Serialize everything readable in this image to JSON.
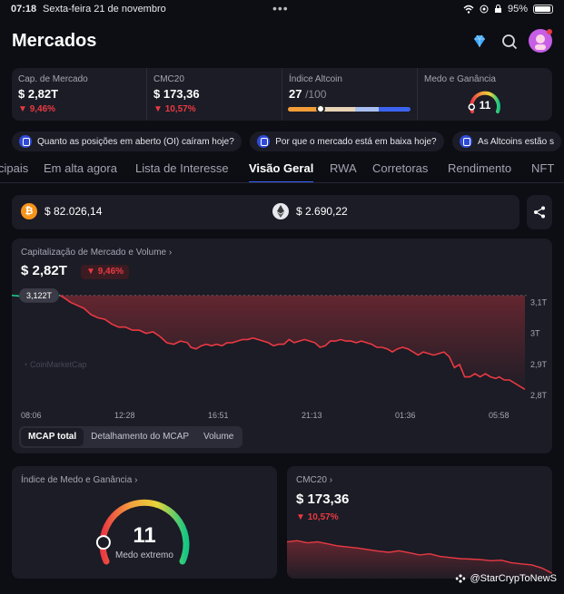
{
  "status_bar": {
    "time": "07:18",
    "date": "Sexta-feira 21 de novembro",
    "battery": "95%",
    "battery_level": 0.95
  },
  "header": {
    "title": "Mercados"
  },
  "stats": {
    "market_cap": {
      "label": "Cap. de Mercado",
      "value": "$ 2,82T",
      "change": "9,46%"
    },
    "cmc20": {
      "label": "CMC20",
      "value": "$ 173,36",
      "change": "10,57%"
    },
    "altcoin": {
      "label": "Índice Altcoin",
      "value": "27",
      "max": "/100",
      "level": 0.27
    },
    "fear_greed": {
      "label": "Medo e Ganância",
      "value": "11",
      "level": 0.11
    }
  },
  "ai_chips": [
    "Quanto as posições em aberto (OI) caíram hoje?",
    "Por que o mercado está em baixa hoje?",
    "As Altcoins estão s"
  ],
  "tabs": [
    "cipais",
    "Em alta agora",
    "Lista de Interesse",
    "Visão Geral",
    "RWA",
    "Corretoras",
    "Rendimento",
    "NFT"
  ],
  "active_tab": "Visão Geral",
  "prices": {
    "btc": "$ 82.026,14",
    "eth": "$ 2.690,22"
  },
  "market_chart": {
    "title": "Capitalização de Mercado e Volume",
    "value": "$ 2,82T",
    "change": "9,46%",
    "start_marker": "3,122T",
    "watermark": "CoinMarketCap",
    "segments": [
      "MCAP total",
      "Detalhamento do MCAP",
      "Volume"
    ],
    "active_segment": "MCAP total"
  },
  "chart_data": {
    "type": "line",
    "title": "Capitalização de Mercado e Volume",
    "x_tick_labels": [
      "08:06",
      "12:28",
      "16:51",
      "21:13",
      "01:36",
      "05:58"
    ],
    "y_tick_labels": [
      "3,1T",
      "3T",
      "2,9T",
      "2,8T"
    ],
    "ylim": [
      2.78,
      3.13
    ],
    "x": [
      0,
      4,
      8,
      12,
      16,
      20,
      24,
      28,
      31,
      34,
      38,
      42,
      46,
      50,
      54,
      58,
      62,
      66,
      70,
      74,
      78,
      82,
      86,
      90,
      94,
      98,
      102,
      104,
      107,
      110,
      113,
      116,
      119,
      122,
      125,
      128,
      131,
      134,
      137,
      140,
      143,
      146,
      149,
      152,
      155,
      158,
      161,
      164,
      167,
      170,
      173,
      176,
      179,
      182,
      185,
      188,
      191,
      194,
      197,
      200,
      203,
      206,
      209,
      212,
      215,
      218,
      221,
      224,
      227,
      230,
      233,
      236,
      239,
      242,
      245,
      248,
      251,
      254,
      257,
      260,
      263,
      266,
      269,
      272,
      275,
      278,
      281,
      283,
      286,
      289,
      292,
      295,
      298
    ],
    "series": [
      {
        "values": [
          3.122,
          3.12,
          3.121,
          3.118,
          3.122,
          3.12,
          3.121,
          3.122,
          3.112,
          3.1,
          3.09,
          3.08,
          3.06,
          3.05,
          3.045,
          3.03,
          3.02,
          3.02,
          3.01,
          3.01,
          3.0,
          3.005,
          2.99,
          2.97,
          2.965,
          2.975,
          2.97,
          2.955,
          2.95,
          2.96,
          2.965,
          2.96,
          2.965,
          2.96,
          2.97,
          2.97,
          2.975,
          2.98,
          2.98,
          2.985,
          2.98,
          2.975,
          2.97,
          2.96,
          2.965,
          2.965,
          2.98,
          2.97,
          2.975,
          2.98,
          2.975,
          2.97,
          2.955,
          2.96,
          2.975,
          2.975,
          2.98,
          2.975,
          2.975,
          2.97,
          2.975,
          2.97,
          2.965,
          2.955,
          2.955,
          2.95,
          2.94,
          2.95,
          2.955,
          2.95,
          2.94,
          2.93,
          2.94,
          2.935,
          2.93,
          2.935,
          2.94,
          2.925,
          2.89,
          2.9,
          2.86,
          2.86,
          2.87,
          2.86,
          2.87,
          2.86,
          2.855,
          2.86,
          2.85,
          2.85,
          2.84,
          2.83,
          2.82
        ]
      }
    ],
    "grid": false
  },
  "fear_greed_card": {
    "title": "Índice de Medo e Ganância",
    "value": "11",
    "label": "Medo extremo",
    "level": 0.11
  },
  "cmc20_card": {
    "title": "CMC20",
    "value": "$ 173,36",
    "change": "10,57%"
  },
  "cmc20_spark": [
    0.7,
    0.72,
    0.68,
    0.7,
    0.66,
    0.62,
    0.6,
    0.58,
    0.55,
    0.52,
    0.5,
    0.53,
    0.49,
    0.45,
    0.47,
    0.42,
    0.4,
    0.38,
    0.37,
    0.36,
    0.34,
    0.35,
    0.3,
    0.28,
    0.26,
    0.2,
    0.1
  ],
  "credit": "@StarCrypToNewS"
}
